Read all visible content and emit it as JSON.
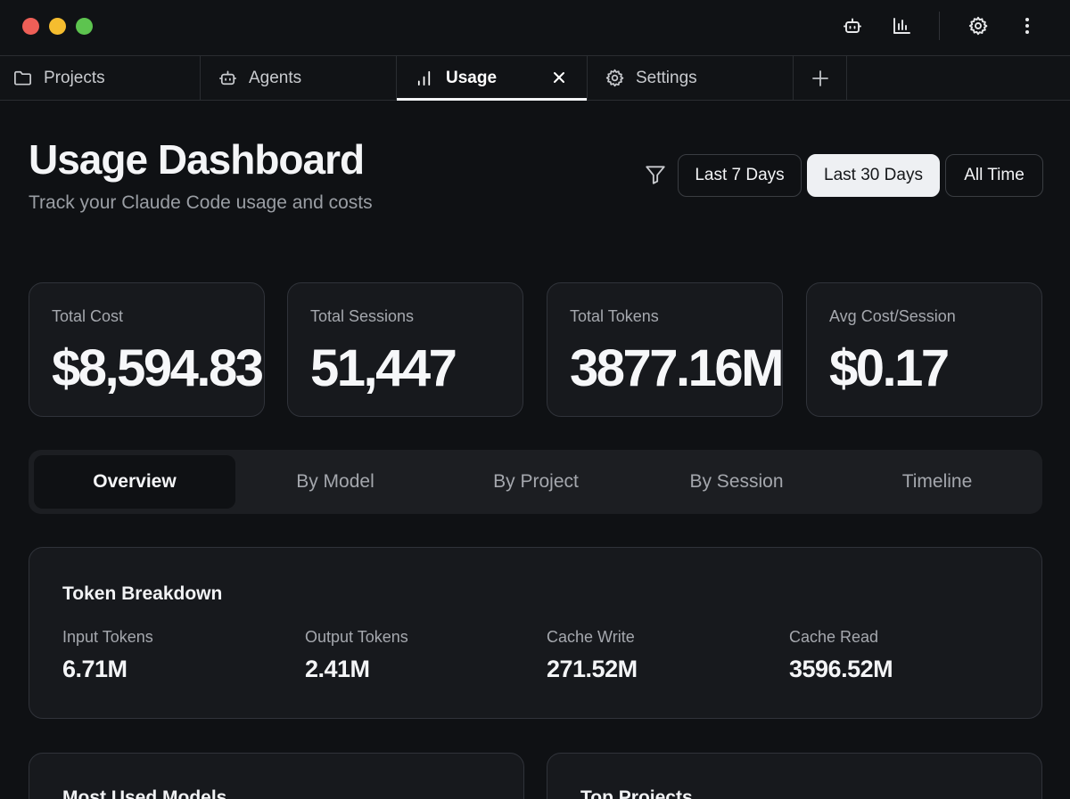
{
  "titlebar": {
    "icons": [
      "robot-icon",
      "bar-chart-icon",
      "gear-icon",
      "more-vertical-icon"
    ]
  },
  "tabs": [
    {
      "label": "Projects",
      "icon": "folder-icon",
      "active": false
    },
    {
      "label": "Agents",
      "icon": "robot-icon",
      "active": false
    },
    {
      "label": "Usage",
      "icon": "bar-chart-icon",
      "active": true
    },
    {
      "label": "Settings",
      "icon": "gear-icon",
      "active": false
    }
  ],
  "header": {
    "title": "Usage Dashboard",
    "subtitle": "Track your Claude Code usage and costs",
    "ranges": [
      "Last 7 Days",
      "Last 30 Days",
      "All Time"
    ],
    "selected_range": "Last 30 Days"
  },
  "stats": [
    {
      "label": "Total Cost",
      "value": "$8,594.83"
    },
    {
      "label": "Total Sessions",
      "value": "51,447"
    },
    {
      "label": "Total Tokens",
      "value": "3877.16M"
    },
    {
      "label": "Avg Cost/Session",
      "value": "$0.17"
    }
  ],
  "segments": [
    "Overview",
    "By Model",
    "By Project",
    "By Session",
    "Timeline"
  ],
  "active_segment": "Overview",
  "token_breakdown": {
    "title": "Token Breakdown",
    "metrics": [
      {
        "label": "Input Tokens",
        "value": "6.71M"
      },
      {
        "label": "Output Tokens",
        "value": "2.41M"
      },
      {
        "label": "Cache Write",
        "value": "271.52M"
      },
      {
        "label": "Cache Read",
        "value": "3596.52M"
      }
    ]
  },
  "bottom_cards": [
    {
      "title": "Most Used Models"
    },
    {
      "title": "Top Projects"
    }
  ],
  "colors": {
    "background": "#0f1114",
    "card": "#17191d",
    "border": "#30333a",
    "selected_button": "#eef0f3",
    "traffic_red": "#ee5f57",
    "traffic_yellow": "#f5bd2f",
    "traffic_green": "#5dc44f"
  }
}
